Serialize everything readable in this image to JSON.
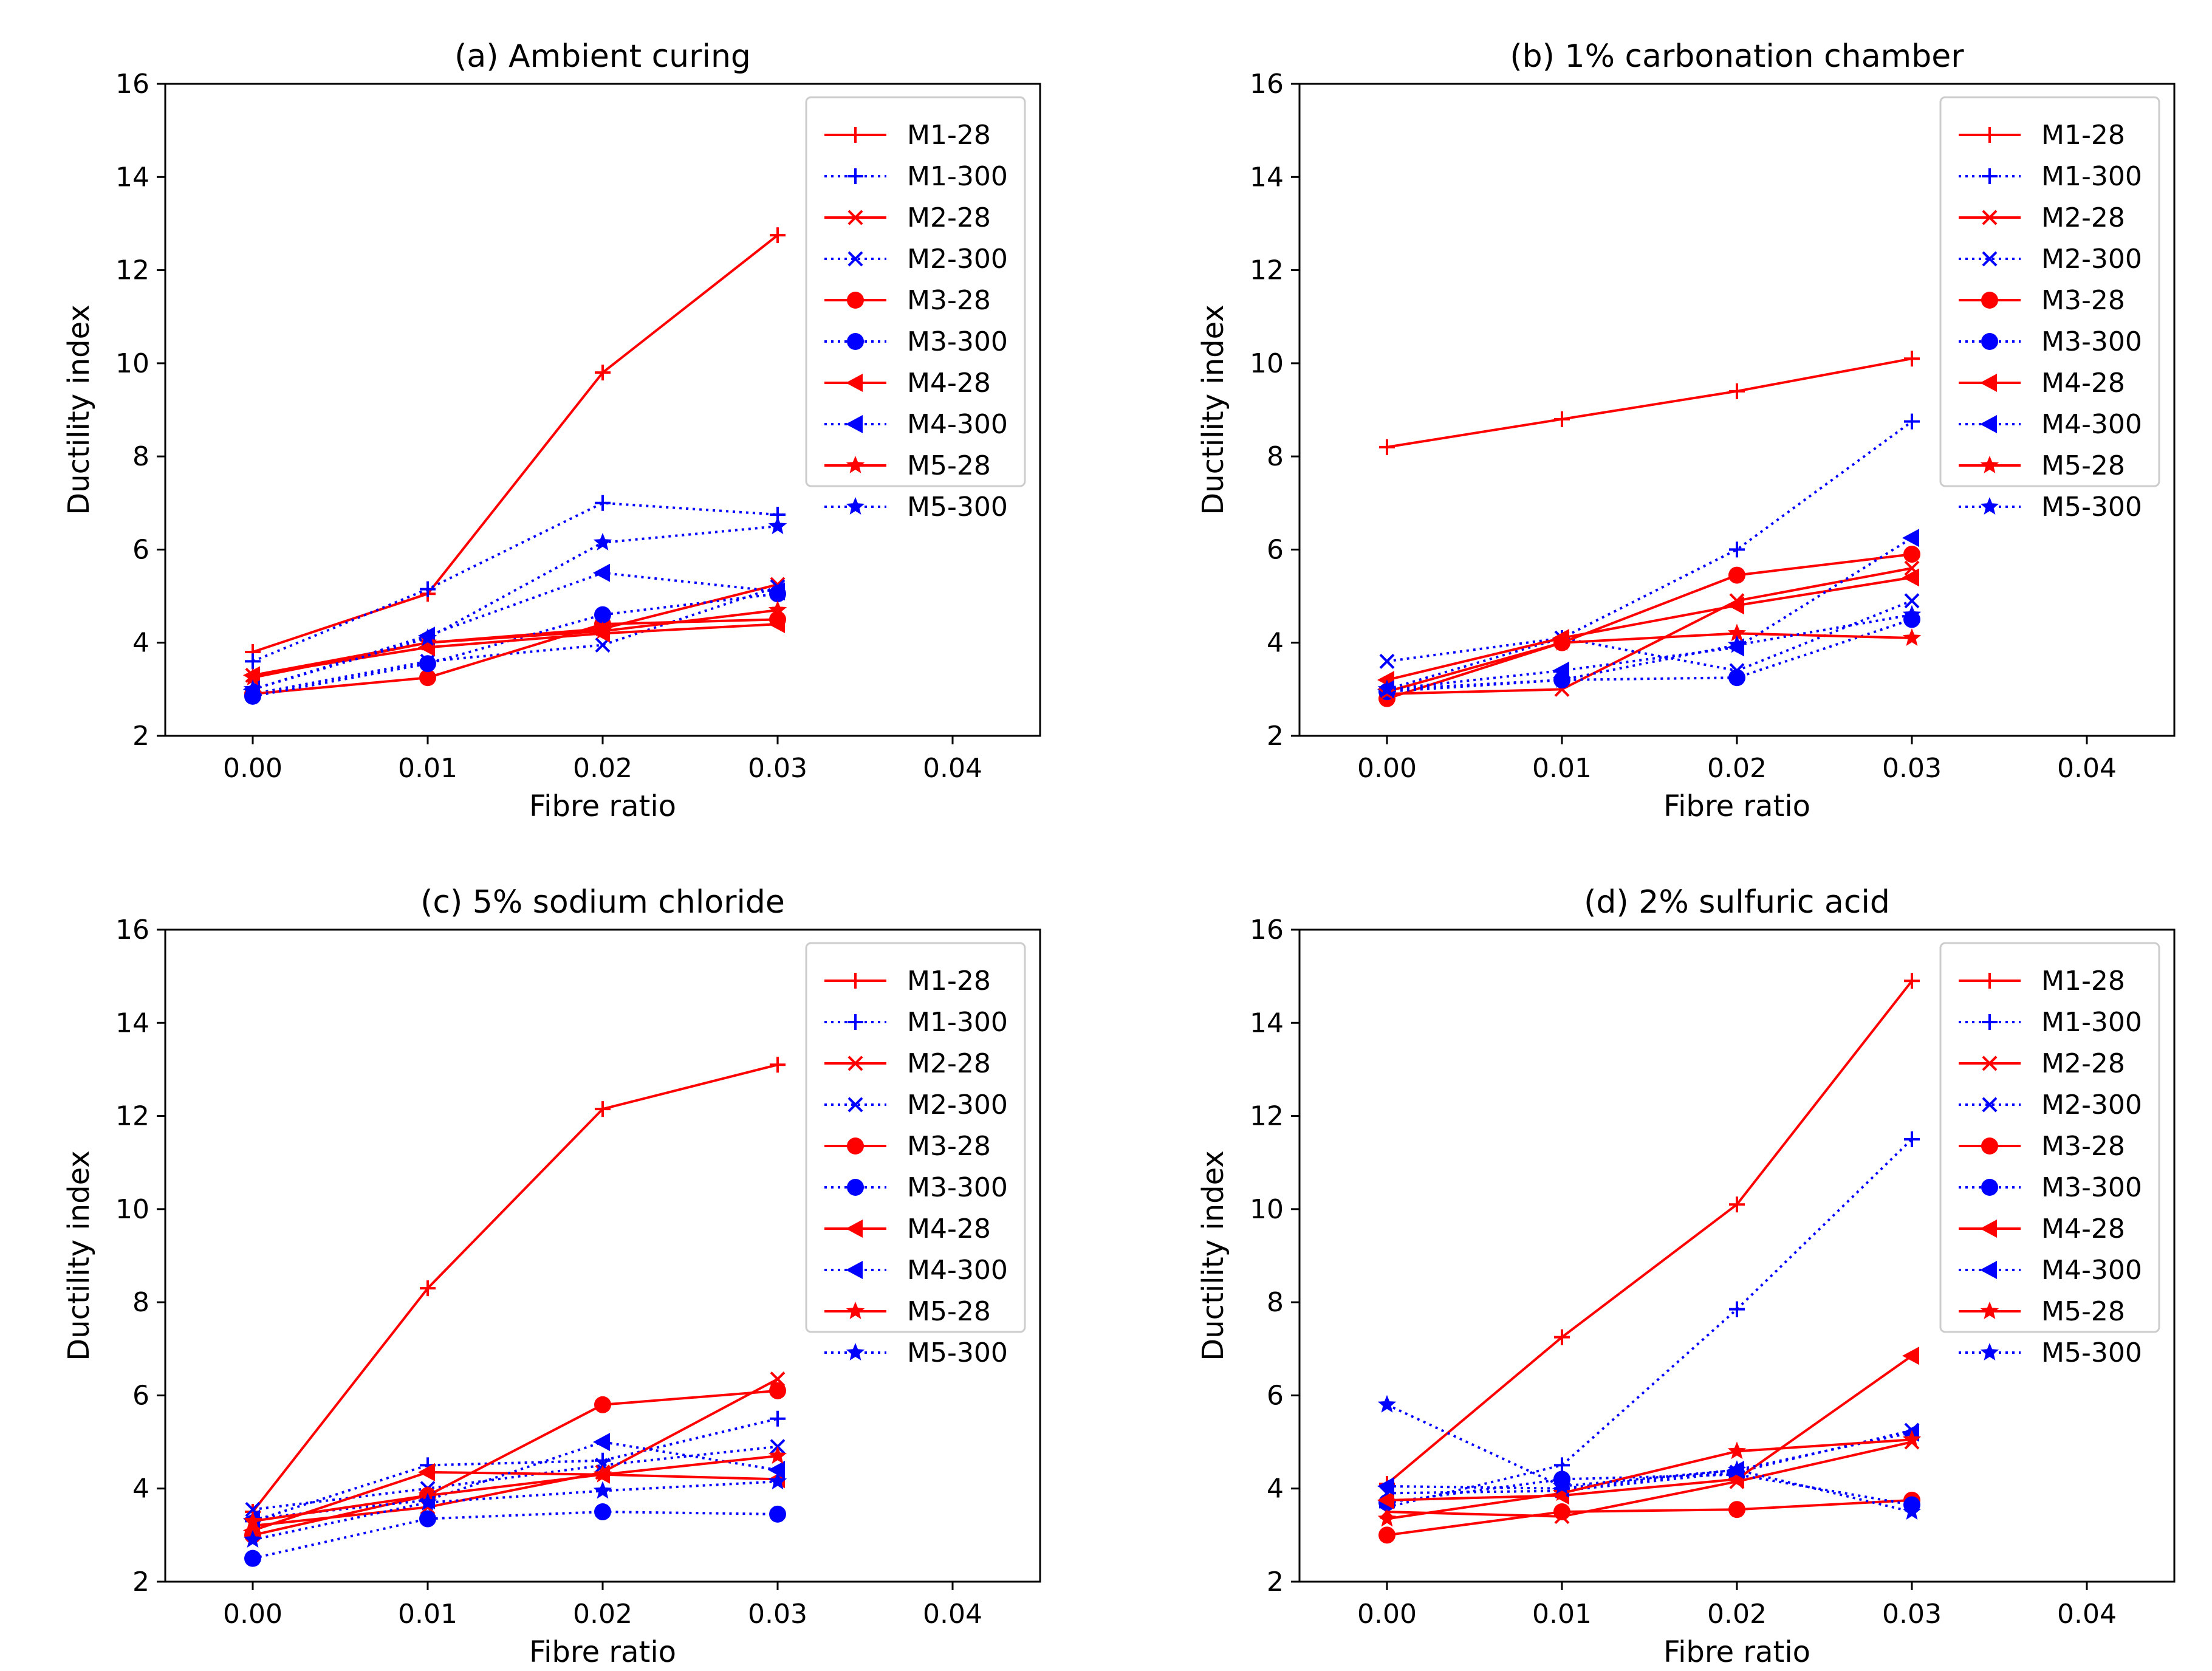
{
  "chart_data": [
    {
      "type": "line",
      "title": "(a) Ambient curing",
      "xlabel": "Fibre ratio",
      "ylabel": "Ductility index",
      "xlim": [
        -0.005,
        0.045
      ],
      "ylim": [
        2,
        16
      ],
      "xticks": [
        "0.00",
        "0.01",
        "0.02",
        "0.03",
        "0.04"
      ],
      "yticks": [
        "2",
        "4",
        "6",
        "8",
        "10",
        "12",
        "14",
        "16"
      ],
      "legend_position": "top-right",
      "x": [
        0.0,
        0.01,
        0.02,
        0.03
      ],
      "series": [
        {
          "name": "M1-28",
          "color": "#ff0000",
          "style": "solid",
          "marker": "plus",
          "values": [
            3.8,
            5.05,
            9.8,
            12.75
          ]
        },
        {
          "name": "M1-300",
          "color": "#0000ff",
          "style": "dotted",
          "marker": "plus",
          "values": [
            3.6,
            5.15,
            7.0,
            6.75
          ]
        },
        {
          "name": "M2-28",
          "color": "#ff0000",
          "style": "solid",
          "marker": "x",
          "values": [
            3.3,
            4.0,
            4.3,
            5.25
          ]
        },
        {
          "name": "M2-300",
          "color": "#0000ff",
          "style": "dotted",
          "marker": "x",
          "values": [
            2.9,
            3.6,
            3.95,
            5.2
          ]
        },
        {
          "name": "M3-28",
          "color": "#ff0000",
          "style": "solid",
          "marker": "circle",
          "values": [
            2.9,
            3.25,
            4.4,
            4.5
          ]
        },
        {
          "name": "M3-300",
          "color": "#0000ff",
          "style": "dotted",
          "marker": "circle",
          "values": [
            2.85,
            3.55,
            4.6,
            5.05
          ]
        },
        {
          "name": "M4-28",
          "color": "#ff0000",
          "style": "solid",
          "marker": "triangle-left",
          "values": [
            3.3,
            3.9,
            4.2,
            4.4
          ]
        },
        {
          "name": "M4-300",
          "color": "#0000ff",
          "style": "dotted",
          "marker": "triangle-left",
          "values": [
            3.0,
            4.15,
            5.5,
            5.1
          ]
        },
        {
          "name": "M5-28",
          "color": "#ff0000",
          "style": "solid",
          "marker": "star",
          "values": [
            3.25,
            4.0,
            4.25,
            4.7
          ]
        },
        {
          "name": "M5-300",
          "color": "#0000ff",
          "style": "dotted",
          "marker": "star",
          "values": [
            3.0,
            4.1,
            6.15,
            6.5
          ]
        }
      ]
    },
    {
      "type": "line",
      "title": "(b) 1% carbonation chamber",
      "xlabel": "Fibre ratio",
      "ylabel": "Ductility index",
      "xlim": [
        -0.005,
        0.045
      ],
      "ylim": [
        2,
        16
      ],
      "xticks": [
        "0.00",
        "0.01",
        "0.02",
        "0.03",
        "0.04"
      ],
      "yticks": [
        "2",
        "4",
        "6",
        "8",
        "10",
        "12",
        "14",
        "16"
      ],
      "legend_position": "top-right",
      "x": [
        0.0,
        0.01,
        0.02,
        0.03
      ],
      "series": [
        {
          "name": "M1-28",
          "color": "#ff0000",
          "style": "solid",
          "marker": "plus",
          "values": [
            8.2,
            8.8,
            9.4,
            10.1
          ]
        },
        {
          "name": "M1-300",
          "color": "#0000ff",
          "style": "dotted",
          "marker": "plus",
          "values": [
            3.0,
            4.1,
            6.0,
            8.75
          ]
        },
        {
          "name": "M2-28",
          "color": "#ff0000",
          "style": "solid",
          "marker": "x",
          "values": [
            2.9,
            3.0,
            4.9,
            5.6
          ]
        },
        {
          "name": "M2-300",
          "color": "#0000ff",
          "style": "dotted",
          "marker": "x",
          "values": [
            3.6,
            4.1,
            3.4,
            4.9
          ]
        },
        {
          "name": "M3-28",
          "color": "#ff0000",
          "style": "solid",
          "marker": "circle",
          "values": [
            2.8,
            4.0,
            5.45,
            5.9
          ]
        },
        {
          "name": "M3-300",
          "color": "#0000ff",
          "style": "dotted",
          "marker": "circle",
          "values": [
            2.95,
            3.2,
            3.25,
            4.5
          ]
        },
        {
          "name": "M4-28",
          "color": "#ff0000",
          "style": "solid",
          "marker": "triangle-left",
          "values": [
            3.2,
            4.1,
            4.8,
            5.4
          ]
        },
        {
          "name": "M4-300",
          "color": "#0000ff",
          "style": "dotted",
          "marker": "triangle-left",
          "values": [
            3.0,
            3.4,
            3.9,
            6.25
          ]
        },
        {
          "name": "M5-28",
          "color": "#ff0000",
          "style": "solid",
          "marker": "star",
          "values": [
            2.95,
            4.0,
            4.2,
            4.1
          ]
        },
        {
          "name": "M5-300",
          "color": "#0000ff",
          "style": "dotted",
          "marker": "star",
          "values": [
            3.0,
            3.2,
            3.95,
            4.6
          ]
        }
      ]
    },
    {
      "type": "line",
      "title": "(c) 5% sodium chloride",
      "xlabel": "Fibre ratio",
      "ylabel": "Ductility index",
      "xlim": [
        -0.005,
        0.045
      ],
      "ylim": [
        2,
        16
      ],
      "xticks": [
        "0.00",
        "0.01",
        "0.02",
        "0.03",
        "0.04"
      ],
      "yticks": [
        "2",
        "4",
        "6",
        "8",
        "10",
        "12",
        "14",
        "16"
      ],
      "legend_position": "top-right",
      "x": [
        0.0,
        0.01,
        0.02,
        0.03
      ],
      "series": [
        {
          "name": "M1-28",
          "color": "#ff0000",
          "style": "solid",
          "marker": "plus",
          "values": [
            3.5,
            8.3,
            12.15,
            13.1
          ]
        },
        {
          "name": "M1-300",
          "color": "#0000ff",
          "style": "dotted",
          "marker": "plus",
          "values": [
            3.3,
            4.5,
            4.6,
            5.5
          ]
        },
        {
          "name": "M2-28",
          "color": "#ff0000",
          "style": "solid",
          "marker": "x",
          "values": [
            3.2,
            3.6,
            4.35,
            6.35
          ]
        },
        {
          "name": "M2-300",
          "color": "#0000ff",
          "style": "dotted",
          "marker": "x",
          "values": [
            3.55,
            4.0,
            4.5,
            4.9
          ]
        },
        {
          "name": "M3-28",
          "color": "#ff0000",
          "style": "solid",
          "marker": "circle",
          "values": [
            3.0,
            3.85,
            5.8,
            6.1
          ]
        },
        {
          "name": "M3-300",
          "color": "#0000ff",
          "style": "dotted",
          "marker": "circle",
          "values": [
            2.5,
            3.35,
            3.5,
            3.45
          ]
        },
        {
          "name": "M4-28",
          "color": "#ff0000",
          "style": "solid",
          "marker": "triangle-left",
          "values": [
            3.1,
            4.35,
            4.3,
            4.2
          ]
        },
        {
          "name": "M4-300",
          "color": "#0000ff",
          "style": "dotted",
          "marker": "triangle-left",
          "values": [
            3.35,
            3.75,
            5.0,
            4.4
          ]
        },
        {
          "name": "M5-28",
          "color": "#ff0000",
          "style": "solid",
          "marker": "star",
          "values": [
            3.3,
            3.85,
            4.3,
            4.7
          ]
        },
        {
          "name": "M5-300",
          "color": "#0000ff",
          "style": "dotted",
          "marker": "star",
          "values": [
            2.9,
            3.7,
            3.95,
            4.15
          ]
        }
      ]
    },
    {
      "type": "line",
      "title": "(d) 2% sulfuric acid",
      "xlabel": "Fibre ratio",
      "ylabel": "Ductility index",
      "xlim": [
        -0.005,
        0.045
      ],
      "ylim": [
        2,
        16
      ],
      "xticks": [
        "0.00",
        "0.01",
        "0.02",
        "0.03",
        "0.04"
      ],
      "yticks": [
        "2",
        "4",
        "6",
        "8",
        "10",
        "12",
        "14",
        "16"
      ],
      "legend_position": "top-right",
      "x": [
        0.0,
        0.01,
        0.02,
        0.03
      ],
      "series": [
        {
          "name": "M1-28",
          "color": "#ff0000",
          "style": "solid",
          "marker": "plus",
          "values": [
            4.1,
            7.25,
            10.1,
            14.9
          ]
        },
        {
          "name": "M1-300",
          "color": "#0000ff",
          "style": "dotted",
          "marker": "plus",
          "values": [
            3.6,
            4.5,
            7.85,
            11.5
          ]
        },
        {
          "name": "M2-28",
          "color": "#ff0000",
          "style": "solid",
          "marker": "x",
          "values": [
            3.5,
            3.4,
            4.15,
            5.0
          ]
        },
        {
          "name": "M2-300",
          "color": "#0000ff",
          "style": "dotted",
          "marker": "x",
          "values": [
            3.9,
            3.95,
            4.35,
            5.25
          ]
        },
        {
          "name": "M3-28",
          "color": "#ff0000",
          "style": "solid",
          "marker": "circle",
          "values": [
            3.0,
            3.5,
            3.55,
            3.75
          ]
        },
        {
          "name": "M3-300",
          "color": "#0000ff",
          "style": "dotted",
          "marker": "circle",
          "values": [
            3.7,
            4.2,
            4.3,
            3.65
          ]
        },
        {
          "name": "M4-28",
          "color": "#ff0000",
          "style": "solid",
          "marker": "triangle-left",
          "values": [
            3.75,
            3.85,
            4.2,
            6.85
          ]
        },
        {
          "name": "M4-300",
          "color": "#0000ff",
          "style": "dotted",
          "marker": "triangle-left",
          "values": [
            4.05,
            4.0,
            4.4,
            5.2
          ]
        },
        {
          "name": "M5-28",
          "color": "#ff0000",
          "style": "solid",
          "marker": "star",
          "values": [
            3.35,
            3.9,
            4.8,
            5.05
          ]
        },
        {
          "name": "M5-300",
          "color": "#0000ff",
          "style": "dotted",
          "marker": "star",
          "values": [
            5.8,
            4.05,
            4.4,
            3.5
          ]
        }
      ]
    }
  ]
}
